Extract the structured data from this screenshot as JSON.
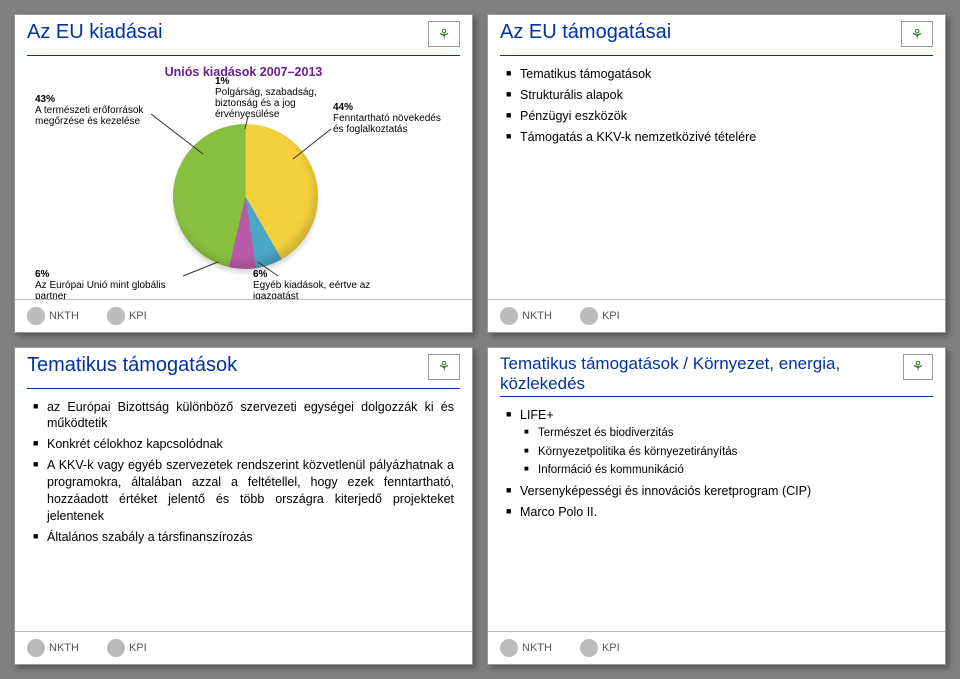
{
  "slide1": {
    "title": "Az EU kiadásai",
    "chart": {
      "subtitle": "Uniós kiadások 2007–2013",
      "type": "pie",
      "slices": [
        {
          "label": "A természeti erőforrások megőrzése és kezelése",
          "pct": "43%",
          "value": 43,
          "color": "#89bf3f"
        },
        {
          "label": "Fenntartható növekedés és foglalkoztatás",
          "pct": "44%",
          "value": 44,
          "color": "#f4d13c"
        },
        {
          "label": "Egyéb kiadások, eértve az igazgatást",
          "pct": "6%",
          "value": 6,
          "color": "#4ba7c8"
        },
        {
          "label": "Az Európai Unió mint globális partner",
          "pct": "6%",
          "value": 6,
          "color": "#b85aa8"
        },
        {
          "label": "Polgárság, szabadság, biztonság és a jog érvényesülése",
          "pct": "1%",
          "value": 1,
          "color": "#1f4fa3"
        }
      ],
      "background_color": "#ffffff"
    }
  },
  "slide2": {
    "title": "Az EU támogatásai",
    "bullets": [
      "Tematikus támogatások",
      "Strukturális alapok",
      "Pénzügyi eszközök",
      "Támogatás a KKV-k nemzetközivé tételére"
    ]
  },
  "slide3": {
    "title": "Tematikus támogatások",
    "bullets": [
      "az Európai Bizottság különböző szervezeti egységei dolgozzák ki és működtetik",
      "Konkrét célokhoz kapcsolódnak",
      "A KKV-k vagy egyéb szervezetek rendszerint közvetlenül pályázhatnak a programokra, általában azzal a feltétellel, hogy ezek fenntartható, hozzáadott értéket jelentő és több országra kiterjedő projekteket jelentenek",
      "Általános szabály a társfinanszírozás"
    ]
  },
  "slide4": {
    "title": "Tematikus támogatások / Környezet, energia, közlekedés",
    "items": [
      {
        "label": "LIFE+",
        "sub": [
          "Természet és biodiverzitás",
          "Környezetpolitika és környezetirányítás",
          "Információ és kommunikáció"
        ]
      },
      {
        "label": "Versenyképességi és innovációs keretprogram (CIP)"
      },
      {
        "label": "Marco Polo II."
      }
    ]
  },
  "footer": {
    "logo1": "NKTH",
    "logo2": "KPI"
  },
  "flag_glyph": "⚘",
  "colors": {
    "title": "#0033a0",
    "chart_subtitle": "#6b1e8f"
  }
}
